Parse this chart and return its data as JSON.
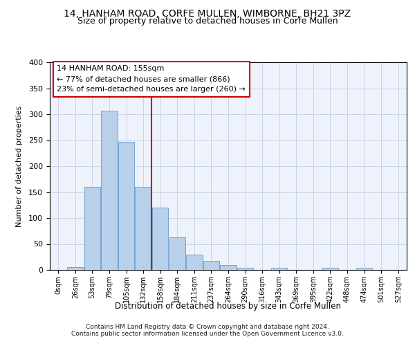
{
  "title1": "14, HANHAM ROAD, CORFE MULLEN, WIMBORNE, BH21 3PZ",
  "title2": "Size of property relative to detached houses in Corfe Mullen",
  "xlabel": "Distribution of detached houses by size in Corfe Mullen",
  "ylabel": "Number of detached properties",
  "footnote1": "Contains HM Land Registry data © Crown copyright and database right 2024.",
  "footnote2": "Contains public sector information licensed under the Open Government Licence v3.0.",
  "bar_labels": [
    "0sqm",
    "26sqm",
    "53sqm",
    "79sqm",
    "105sqm",
    "132sqm",
    "158sqm",
    "184sqm",
    "211sqm",
    "237sqm",
    "264sqm",
    "290sqm",
    "316sqm",
    "343sqm",
    "369sqm",
    "395sqm",
    "422sqm",
    "448sqm",
    "474sqm",
    "501sqm",
    "527sqm"
  ],
  "bar_values": [
    0,
    5,
    160,
    307,
    247,
    160,
    120,
    63,
    30,
    17,
    9,
    4,
    0,
    4,
    0,
    0,
    4,
    0,
    4,
    0,
    0
  ],
  "bar_color": "#b8d0ea",
  "bar_edgecolor": "#6699cc",
  "vline_x": 5.5,
  "vline_color": "#cc0000",
  "annotation_box_text": "14 HANHAM ROAD: 155sqm\n← 77% of detached houses are smaller (866)\n23% of semi-detached houses are larger (260) →",
  "ylim": [
    0,
    400
  ],
  "yticks": [
    0,
    50,
    100,
    150,
    200,
    250,
    300,
    350,
    400
  ],
  "bg_color": "#eef2fb",
  "grid_color": "#c5cde8",
  "title_fontsize": 10,
  "subtitle_fontsize": 9
}
